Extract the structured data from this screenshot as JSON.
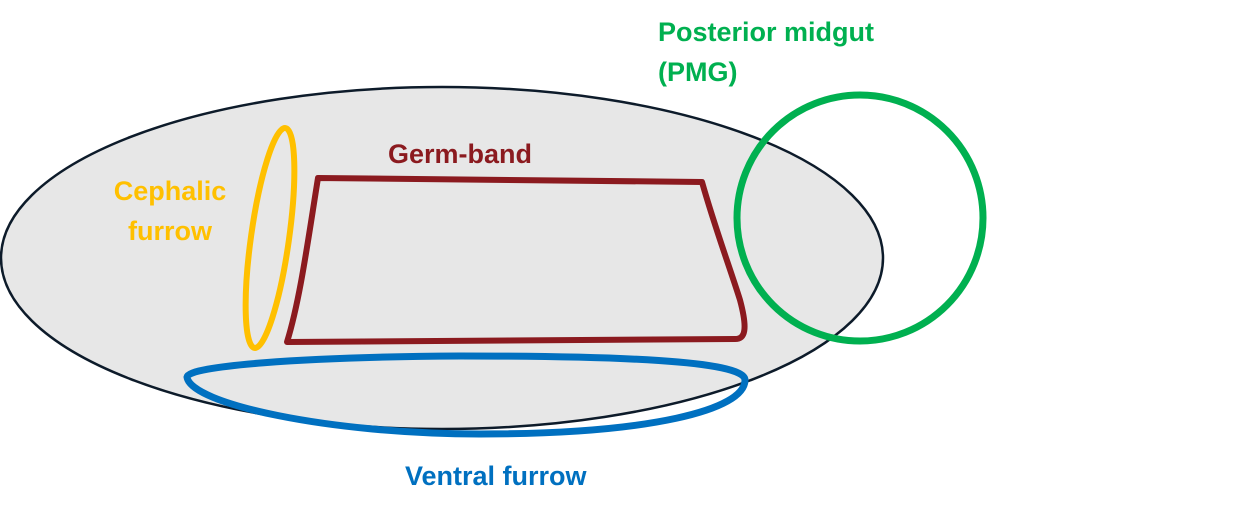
{
  "diagram": {
    "embryo": {
      "fill": "#e7e7e7",
      "stroke": "#0d1b2a"
    },
    "labels": {
      "posterior_midgut": {
        "line1": "Posterior midgut",
        "line2": "(PMG)",
        "color": "#00b050"
      },
      "germ_band": {
        "text": "Germ-band",
        "color": "#8b1a1f"
      },
      "cephalic_furrow": {
        "line1": "Cephalic",
        "line2": "furrow",
        "color": "#ffc000"
      },
      "ventral_furrow": {
        "text": "Ventral furrow",
        "color": "#0070c0"
      }
    }
  }
}
